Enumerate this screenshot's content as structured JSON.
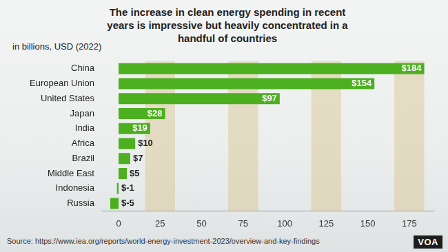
{
  "chart_data": {
    "type": "bar",
    "orientation": "horizontal",
    "title": "The increase in clean energy spending in recent years is impressive but heavily concentrated in a handful of countries",
    "subtitle": "in billions, USD (2022)",
    "source": "Source: https://www.iea.org/reports/world-energy-investment-2023/overview-and-key-findings",
    "credit": "VOA",
    "categories": [
      "China",
      "European Union",
      "United States",
      "Japan",
      "India",
      "Africa",
      "Brazil",
      "Middle East",
      "Indonesia",
      "Russia"
    ],
    "values": [
      184,
      154,
      97,
      28,
      19,
      10,
      7,
      5,
      -1,
      -5
    ],
    "value_labels": [
      "$184",
      "$154",
      "$97",
      "$28",
      "$19",
      "$10",
      "$7",
      "$5",
      "$-1",
      "$-5"
    ],
    "data_labels": true,
    "color": "#4caf1f",
    "xlim": [
      -10,
      190
    ],
    "xticks": [
      0,
      25,
      50,
      75,
      100,
      125,
      150,
      175
    ],
    "grid": true
  }
}
